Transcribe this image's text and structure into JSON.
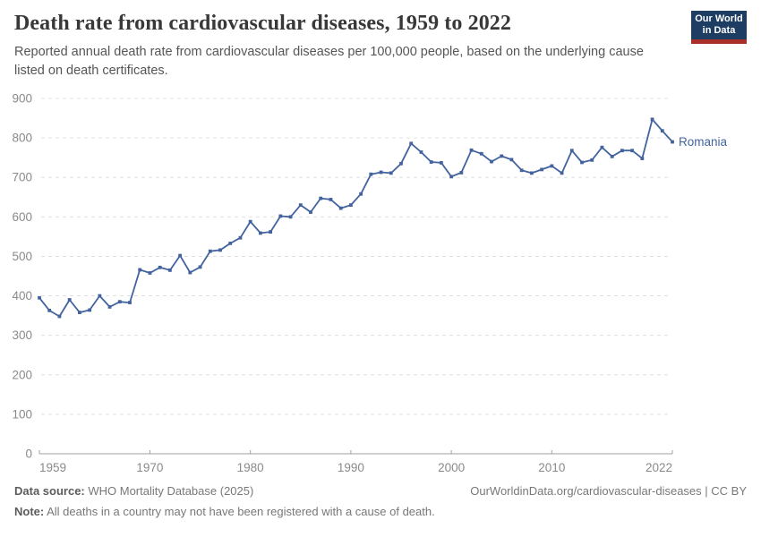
{
  "header": {
    "title": "Death rate from cardiovascular diseases, 1959 to 2022",
    "subtitle": "Reported annual death rate from cardiovascular diseases per 100,000 people, based on the underlying cause listed on death certificates."
  },
  "logo": {
    "line1": "Our World",
    "line2": "in Data",
    "bg_color": "#1d3d63",
    "stripe_color": "#a92e27"
  },
  "chart_data": {
    "type": "line",
    "title": "Death rate from cardiovascular diseases, 1959 to 2022",
    "xlabel": "",
    "ylabel": "",
    "ylim": [
      0,
      900
    ],
    "yticks": [
      0,
      100,
      200,
      300,
      400,
      500,
      600,
      700,
      800,
      900
    ],
    "xticks": [
      1959,
      1970,
      1980,
      1990,
      2000,
      2010,
      2022
    ],
    "grid": "horizontal-dashed",
    "legend_position": "end-of-line-label",
    "x": [
      1959,
      1960,
      1961,
      1962,
      1963,
      1964,
      1965,
      1966,
      1967,
      1968,
      1969,
      1970,
      1971,
      1972,
      1973,
      1974,
      1975,
      1976,
      1977,
      1978,
      1979,
      1980,
      1981,
      1982,
      1983,
      1984,
      1985,
      1986,
      1987,
      1988,
      1989,
      1990,
      1991,
      1992,
      1993,
      1994,
      1995,
      1996,
      1997,
      1998,
      1999,
      2000,
      2001,
      2002,
      2003,
      2004,
      2005,
      2006,
      2007,
      2008,
      2009,
      2010,
      2011,
      2012,
      2013,
      2014,
      2015,
      2016,
      2017,
      2018,
      2019,
      2020,
      2021,
      2022
    ],
    "series": [
      {
        "name": "Romania",
        "color": "#43639f",
        "values": [
          395,
          363,
          348,
          390,
          358,
          364,
          400,
          372,
          385,
          383,
          466,
          458,
          472,
          465,
          502,
          459,
          473,
          513,
          516,
          533,
          547,
          588,
          559,
          562,
          602,
          600,
          630,
          612,
          647,
          644,
          622,
          630,
          658,
          708,
          713,
          711,
          735,
          786,
          764,
          739,
          737,
          702,
          712,
          769,
          760,
          740,
          754,
          745,
          718,
          711,
          720,
          729,
          711,
          768,
          738,
          744,
          776,
          753,
          768,
          768,
          748,
          847,
          818,
          790
        ]
      }
    ],
    "axis_color": "#a0a0a0",
    "grid_color": "#e0e0e0",
    "tick_label_color": "#8a8a8a"
  },
  "footer": {
    "datasource_label": "Data source:",
    "datasource_value": " WHO Mortality Database (2025)",
    "note_label": "Note:",
    "note_value": " All deaths in a country may not have been registered with a cause of death.",
    "link": "OurWorldinData.org/cardiovascular-diseases | CC BY"
  }
}
